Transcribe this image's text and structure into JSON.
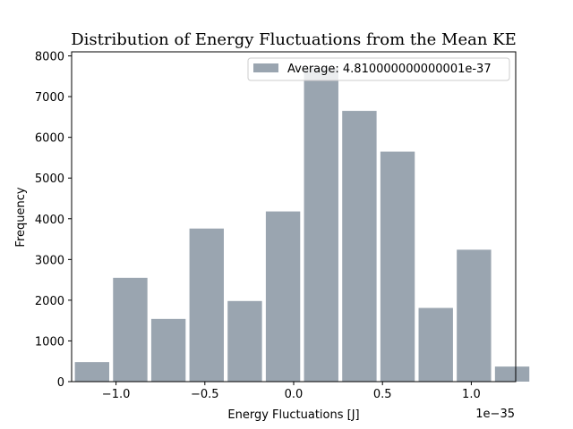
{
  "chart_data": {
    "type": "bar",
    "title": "Distribution of Energy Fluctuations from the Mean KE",
    "xlabel": "Energy Fluctuations [J]",
    "ylabel": "Frequency",
    "x_offset_label": "1e−35",
    "xlim": [
      -1.25,
      1.25
    ],
    "ylim": [
      0,
      8100
    ],
    "x_ticks": [
      -1.0,
      -0.5,
      0.0,
      0.5,
      1.0
    ],
    "x_tick_labels": [
      "−1.0",
      "−0.5",
      "0.0",
      "0.5",
      "1.0"
    ],
    "y_ticks": [
      0,
      1000,
      2000,
      3000,
      4000,
      5000,
      6000,
      7000,
      8000
    ],
    "y_tick_labels": [
      "0",
      "1000",
      "2000",
      "3000",
      "4000",
      "5000",
      "6000",
      "7000",
      "8000"
    ],
    "bin_width": 0.215,
    "bar_fill_fraction": 0.9,
    "bins": [
      {
        "center": -1.135,
        "value": 480
      },
      {
        "center": -0.92,
        "value": 2550
      },
      {
        "center": -0.705,
        "value": 1540
      },
      {
        "center": -0.49,
        "value": 3760
      },
      {
        "center": -0.275,
        "value": 1980
      },
      {
        "center": -0.06,
        "value": 4180
      },
      {
        "center": 0.155,
        "value": 7700
      },
      {
        "center": 0.37,
        "value": 6650
      },
      {
        "center": 0.585,
        "value": 5650
      },
      {
        "center": 0.8,
        "value": 1810
      },
      {
        "center": 1.015,
        "value": 3240
      },
      {
        "center": 1.23,
        "value": 370
      }
    ],
    "series": [
      {
        "name": "Average: 4.810000000000001e-37",
        "color": "#9aa5b0"
      }
    ],
    "legend_position": "top-right",
    "grid": false
  }
}
